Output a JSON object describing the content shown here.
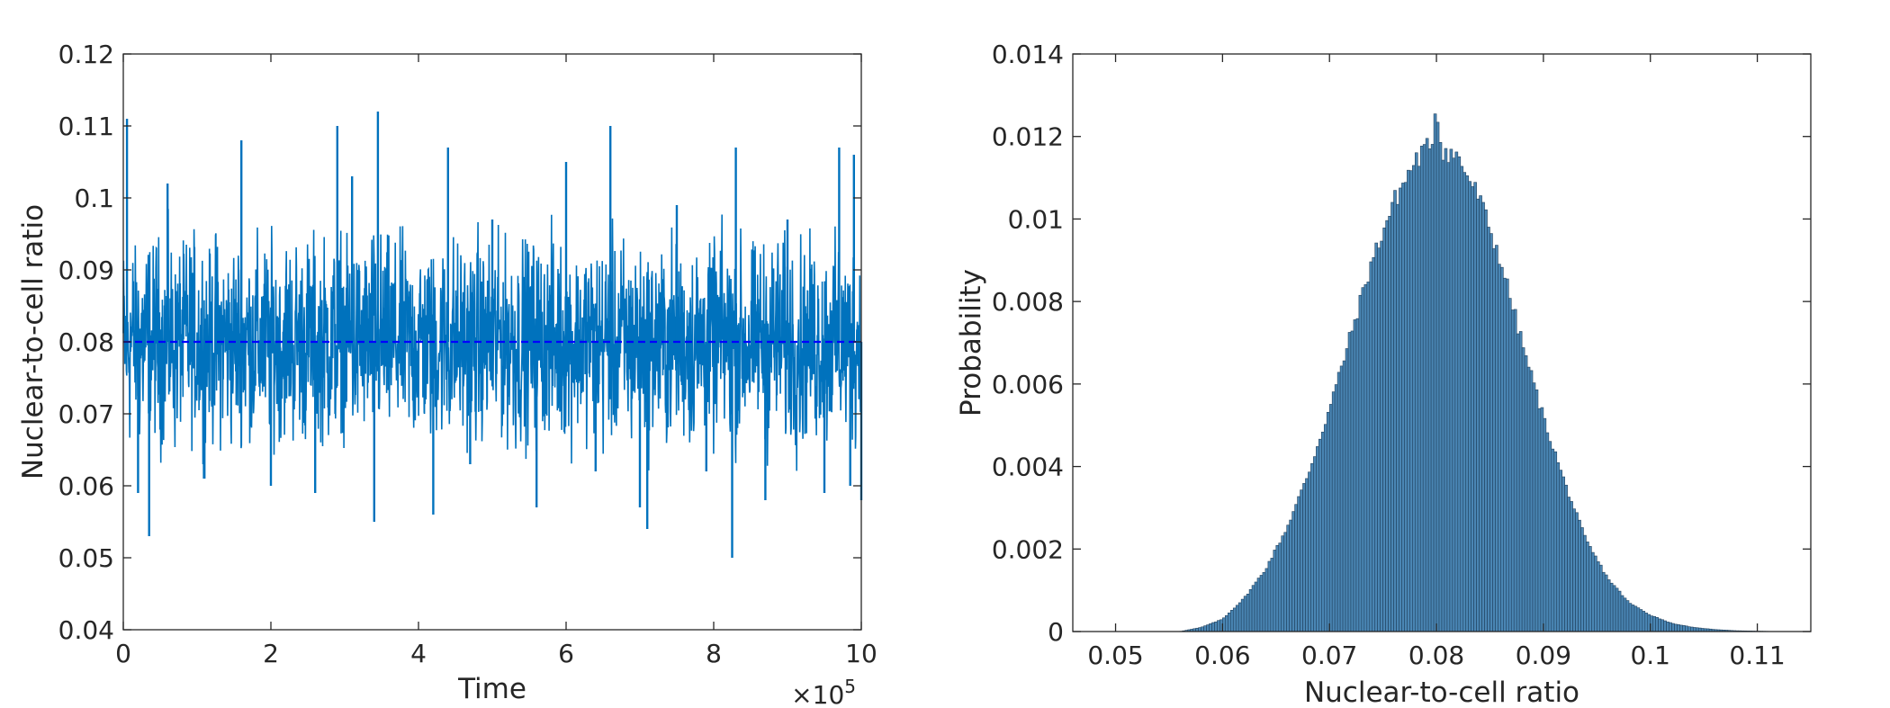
{
  "chart_data": [
    {
      "type": "line",
      "xlabel": "Time",
      "ylabel": "Nuclear-to-cell ratio",
      "x_exponent_label": "×10",
      "x_exponent_power": "5",
      "xlim": [
        0,
        1000000
      ],
      "ylim": [
        0.04,
        0.12
      ],
      "x_tick_values": [
        0,
        200000,
        400000,
        600000,
        800000,
        1000000
      ],
      "x_tick_labels": [
        "0",
        "2",
        "4",
        "6",
        "8",
        "10"
      ],
      "y_tick_values": [
        0.04,
        0.05,
        0.06,
        0.07,
        0.08,
        0.09,
        0.1,
        0.11,
        0.12
      ],
      "y_tick_labels": [
        "0.04",
        "0.05",
        "0.06",
        "0.07",
        "0.08",
        "0.09",
        "0.1",
        "0.11",
        "0.12"
      ],
      "grid": false,
      "series": [
        {
          "line_color": "#0072BD",
          "mean": 0.08,
          "typical_range": [
            0.065,
            0.095
          ],
          "x": [
            0,
            5000,
            20000,
            35000,
            60000,
            110000,
            160000,
            200000,
            260000,
            290000,
            310000,
            340000,
            345000,
            420000,
            440000,
            470000,
            500000,
            560000,
            600000,
            640000,
            660000,
            700000,
            710000,
            750000,
            790000,
            825000,
            830000,
            870000,
            900000,
            950000,
            970000,
            985000,
            990000,
            1000000
          ],
          "y": [
            0.08,
            0.111,
            0.059,
            0.053,
            0.102,
            0.061,
            0.108,
            0.06,
            0.059,
            0.11,
            0.103,
            0.055,
            0.112,
            0.056,
            0.107,
            0.063,
            0.097,
            0.057,
            0.105,
            0.062,
            0.11,
            0.057,
            0.054,
            0.099,
            0.062,
            0.05,
            0.107,
            0.058,
            0.097,
            0.059,
            0.107,
            0.06,
            0.106,
            0.058
          ]
        }
      ],
      "reference_line": {
        "y": 0.08,
        "style": "dashed",
        "color": "#0000FF"
      }
    },
    {
      "type": "bar",
      "subtype": "histogram",
      "xlabel": "Nuclear-to-cell ratio",
      "ylabel": "Probability",
      "xlim": [
        0.046,
        0.115
      ],
      "ylim": [
        0,
        0.014
      ],
      "x_tick_values": [
        0.05,
        0.06,
        0.07,
        0.08,
        0.09,
        0.1,
        0.11
      ],
      "x_tick_labels": [
        "0.05",
        "0.06",
        "0.07",
        "0.08",
        "0.09",
        "0.1",
        "0.11"
      ],
      "y_tick_values": [
        0,
        0.002,
        0.004,
        0.006,
        0.008,
        0.01,
        0.012,
        0.014
      ],
      "y_tick_labels": [
        "0",
        "0.002",
        "0.004",
        "0.006",
        "0.008",
        "0.01",
        "0.012",
        "0.014"
      ],
      "grid": false,
      "bar_color": "#4A86B4",
      "edge_color": "#1F3F5C",
      "x": [
        0.056,
        0.058,
        0.06,
        0.062,
        0.064,
        0.066,
        0.068,
        0.07,
        0.072,
        0.074,
        0.076,
        0.078,
        0.0795,
        0.08,
        0.0805,
        0.082,
        0.084,
        0.086,
        0.088,
        0.09,
        0.092,
        0.094,
        0.096,
        0.098,
        0.1,
        0.102,
        0.104,
        0.106,
        0.108,
        0.11,
        0.112
      ],
      "values": [
        0.0,
        0.0001,
        0.0003,
        0.0008,
        0.0015,
        0.0025,
        0.0038,
        0.0054,
        0.0072,
        0.009,
        0.0104,
        0.0114,
        0.0118,
        0.0128,
        0.0117,
        0.0115,
        0.0105,
        0.009,
        0.007,
        0.0052,
        0.0036,
        0.0022,
        0.0013,
        0.0007,
        0.0004,
        0.0002,
        0.0001,
        5e-05,
        2e-05,
        1e-05,
        0.0
      ]
    }
  ]
}
